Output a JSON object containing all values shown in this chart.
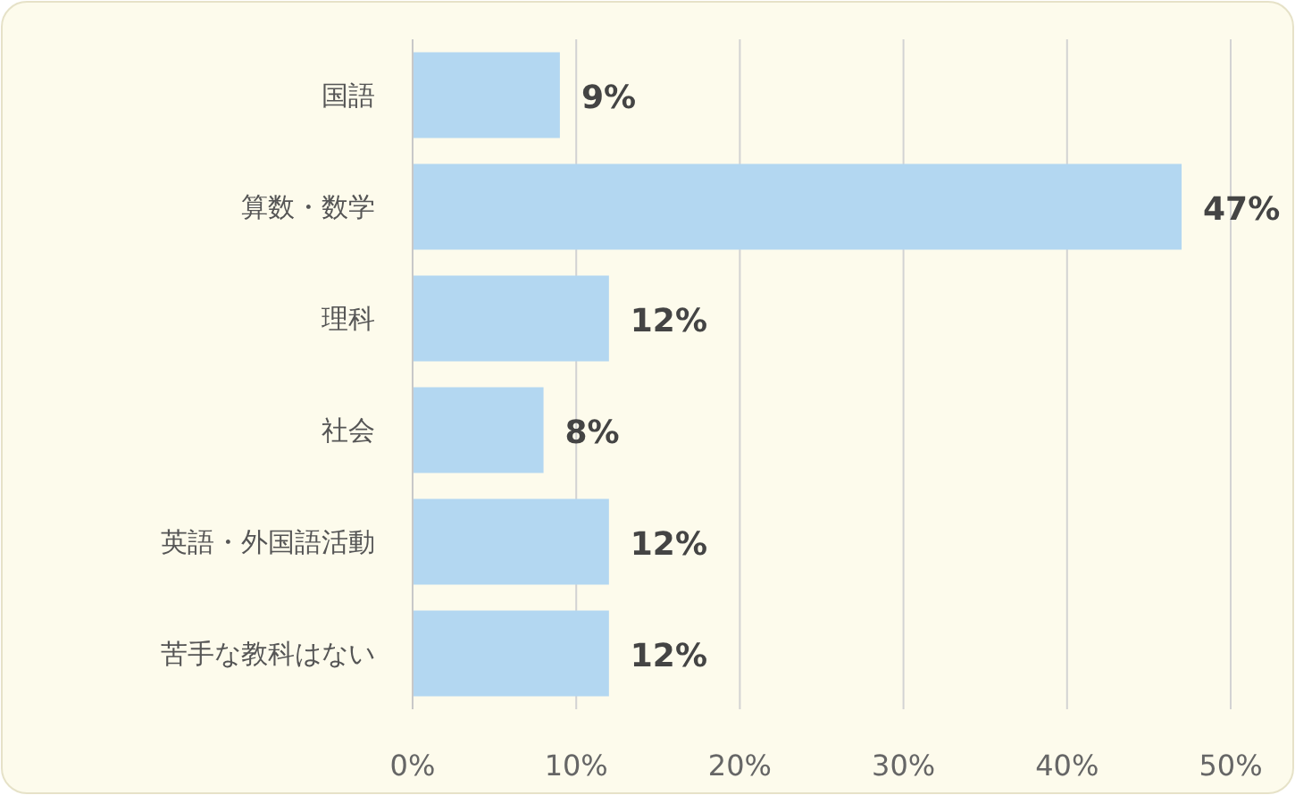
{
  "chart_data": {
    "type": "bar",
    "orientation": "horizontal",
    "categories": [
      "国語",
      "算数・数学",
      "理科",
      "社会",
      "英語・外国語活動",
      "苦手な教科はない"
    ],
    "values": [
      9,
      47,
      12,
      8,
      12,
      12
    ],
    "value_labels": [
      "9%",
      "47%",
      "12%",
      "8%",
      "12%",
      "12%"
    ],
    "color": "#b3d7f1",
    "xlim": [
      0,
      50
    ],
    "xticks": [
      {
        "value": 0,
        "label": "0%"
      },
      {
        "value": 10,
        "label": "10%"
      },
      {
        "value": 20,
        "label": "20%"
      },
      {
        "value": 30,
        "label": "30%"
      },
      {
        "value": 40,
        "label": "40%"
      },
      {
        "value": 50,
        "label": "50%"
      }
    ],
    "grid": "x"
  }
}
